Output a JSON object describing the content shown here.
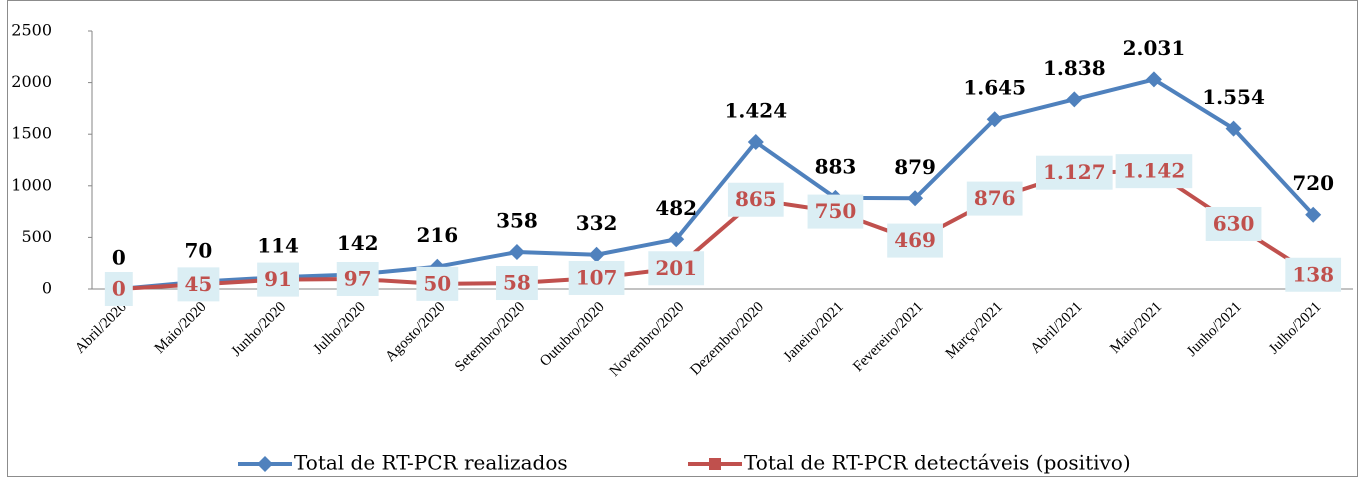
{
  "chart_data": {
    "type": "line",
    "categories": [
      "Abril/2020",
      "Maio/2020",
      "Junho/2020",
      "Julho/2020",
      "Agosto/2020",
      "Setembro/2020",
      "Outubro/2020",
      "Novembro/2020",
      "Dezembro/2020",
      "Janeiro/2021",
      "Fevereiro/2021",
      "Março/2021",
      "Abril/2021",
      "Maio/2021",
      "Junho/2021",
      "Julho/2021"
    ],
    "series": [
      {
        "name": "Total de RT-PCR realizados",
        "color": "#4f81bd",
        "marker": "diamond",
        "values": [
          0,
          70,
          114,
          142,
          216,
          358,
          332,
          482,
          1424,
          883,
          879,
          1645,
          1838,
          2031,
          1554,
          720
        ],
        "value_labels": [
          "0",
          "70",
          "114",
          "142",
          "216",
          "358",
          "332",
          "482",
          "1.424",
          "883",
          "879",
          "1.645",
          "1.838",
          "2.031",
          "1.554",
          "720"
        ]
      },
      {
        "name": "Total de RT-PCR detectáveis (positivo)",
        "color": "#c0504d",
        "marker": "square",
        "values": [
          0,
          45,
          91,
          97,
          50,
          58,
          107,
          201,
          865,
          750,
          469,
          876,
          1127,
          1142,
          630,
          138
        ],
        "value_labels": [
          "0",
          "45",
          "91",
          "97",
          "50",
          "58",
          "107",
          "201",
          "865",
          "750",
          "469",
          "876",
          "1.127",
          "1.142",
          "630",
          "138"
        ]
      }
    ],
    "ylim": [
      0,
      2500
    ],
    "yticks": [
      0,
      500,
      1000,
      1500,
      2000,
      2500
    ],
    "grid": false,
    "legend": "bottom"
  }
}
